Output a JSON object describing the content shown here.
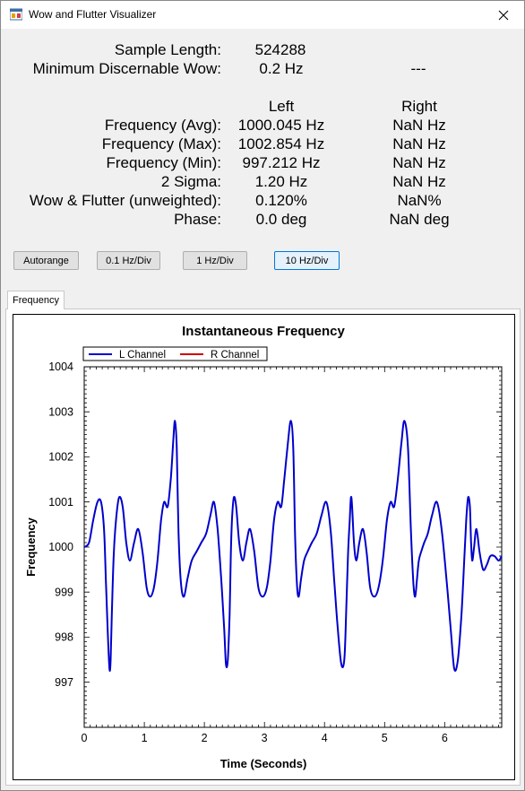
{
  "window": {
    "title": "Wow and Flutter Visualizer",
    "icon": "app-window-icon",
    "close_icon": "close-icon"
  },
  "stats": {
    "sample_length_label": "Sample Length:",
    "sample_length_value": "524288",
    "min_wow_label": "Minimum Discernable Wow:",
    "min_wow_value": "0.2 Hz",
    "min_wow_right": "---",
    "col_left": "Left",
    "col_right": "Right",
    "rows": [
      {
        "label": "Frequency (Avg):",
        "left": "1000.045 Hz",
        "right": "NaN Hz"
      },
      {
        "label": "Frequency (Max):",
        "left": "1002.854 Hz",
        "right": "NaN Hz"
      },
      {
        "label": "Frequency (Min):",
        "left": "997.212 Hz",
        "right": "NaN Hz"
      },
      {
        "label": "2 Sigma:",
        "left": "1.20 Hz",
        "right": "NaN Hz"
      },
      {
        "label": "Wow & Flutter (unweighted):",
        "left": "0.120%",
        "right": "NaN%"
      },
      {
        "label": "Phase:",
        "left": "0.0 deg",
        "right": "NaN deg"
      }
    ]
  },
  "buttons": {
    "autorange": "Autorange",
    "div_01": "0.1 Hz/Div",
    "div_1": "1 Hz/Div",
    "div_10": "10 Hz/Div"
  },
  "tabs": {
    "frequency": "Frequency"
  },
  "chart_data": {
    "type": "line",
    "title": "Instantaneous Frequency",
    "xlabel": "Time (Seconds)",
    "ylabel": "Frequency",
    "xlim": [
      0,
      6.95
    ],
    "ylim": [
      996.0,
      1004.0
    ],
    "x_ticks": [
      "0",
      "1",
      "2",
      "3",
      "4",
      "5",
      "6"
    ],
    "y_ticks": [
      "997",
      "998",
      "999",
      "1000",
      "1001",
      "1002",
      "1003",
      "1004"
    ],
    "legend": {
      "placement": "top-left",
      "entries": [
        "L Channel",
        "R Channel"
      ]
    },
    "series": [
      {
        "name": "L Channel",
        "color": "#0000cc",
        "x": [
          0.0,
          0.08,
          0.15,
          0.22,
          0.28,
          0.33,
          0.36,
          0.39,
          0.42,
          0.44,
          0.46,
          0.49,
          0.53,
          0.58,
          0.64,
          0.7,
          0.76,
          0.83,
          0.9,
          0.97,
          1.04,
          1.1,
          1.16,
          1.22,
          1.28,
          1.33,
          1.39,
          1.44,
          1.48,
          1.51,
          1.54,
          1.57,
          1.61,
          1.66,
          1.72,
          1.79,
          1.87,
          1.95,
          2.03,
          2.1,
          2.16,
          2.22,
          2.28,
          2.33,
          2.36,
          2.39,
          2.42,
          2.44,
          2.46,
          2.49,
          2.53,
          2.58,
          2.64,
          2.7,
          2.76,
          2.83,
          2.9,
          2.97,
          3.04,
          3.1,
          3.16,
          3.22,
          3.28,
          3.33,
          3.39,
          3.44,
          3.48,
          3.51,
          3.54,
          3.57,
          3.61,
          3.66,
          3.72,
          3.79,
          3.87,
          3.95,
          4.03,
          4.1,
          4.16,
          4.22,
          4.28,
          4.33,
          4.36,
          4.39,
          4.42,
          4.44,
          4.46,
          4.49,
          4.53,
          4.58,
          4.64,
          4.7,
          4.76,
          4.83,
          4.9,
          4.97,
          5.04,
          5.1,
          5.16,
          5.22,
          5.28,
          5.33,
          5.39,
          5.44,
          5.48,
          5.51,
          5.54,
          5.57,
          5.61,
          5.66,
          5.72,
          5.79,
          5.87,
          5.95,
          6.03,
          6.1,
          6.16,
          6.22,
          6.28,
          6.33,
          6.36,
          6.39,
          6.42,
          6.44,
          6.46,
          6.49,
          6.53,
          6.58,
          6.64,
          6.7,
          6.76,
          6.83,
          6.9,
          6.95
        ],
        "values": [
          1000.0,
          1000.1,
          1000.6,
          1001.0,
          1001.0,
          1000.4,
          999.3,
          998.2,
          997.3,
          997.5,
          998.5,
          999.8,
          1000.6,
          1001.1,
          1000.9,
          1000.1,
          999.7,
          1000.1,
          1000.4,
          999.9,
          999.1,
          998.9,
          999.1,
          999.7,
          1000.6,
          1001.0,
          1000.9,
          1001.5,
          1002.3,
          1002.8,
          1002.2,
          1000.3,
          999.2,
          998.9,
          999.3,
          999.7,
          999.9,
          1000.1,
          1000.3,
          1000.7,
          1001.0,
          1000.4,
          999.3,
          998.2,
          997.4,
          997.5,
          998.5,
          999.8,
          1000.6,
          1001.1,
          1000.9,
          1000.1,
          999.7,
          1000.1,
          1000.4,
          999.9,
          999.1,
          998.9,
          999.1,
          999.7,
          1000.6,
          1001.0,
          1000.9,
          1001.5,
          1002.3,
          1002.8,
          1002.2,
          1000.3,
          999.2,
          998.9,
          999.3,
          999.7,
          999.9,
          1000.1,
          1000.3,
          1000.7,
          1001.0,
          1000.4,
          999.3,
          998.2,
          997.4,
          997.5,
          998.5,
          999.8,
          1000.6,
          1001.1,
          1000.9,
          1000.1,
          999.7,
          1000.1,
          1000.4,
          999.9,
          999.1,
          998.9,
          999.1,
          999.7,
          1000.6,
          1001.0,
          1000.9,
          1001.5,
          1002.3,
          1002.8,
          1002.2,
          1000.3,
          999.2,
          998.9,
          999.3,
          999.7,
          999.9,
          1000.1,
          1000.3,
          1000.7,
          1001.0,
          1000.4,
          999.3,
          998.2,
          997.3,
          997.5,
          998.5,
          999.8,
          1000.6,
          1001.1,
          1000.9,
          1000.1,
          999.7,
          1000.0,
          1000.4,
          999.9,
          999.5,
          999.6,
          999.8,
          999.8,
          999.7,
          999.8
        ]
      },
      {
        "name": "R Channel",
        "color": "#cc0000",
        "x": [],
        "values": []
      }
    ]
  }
}
